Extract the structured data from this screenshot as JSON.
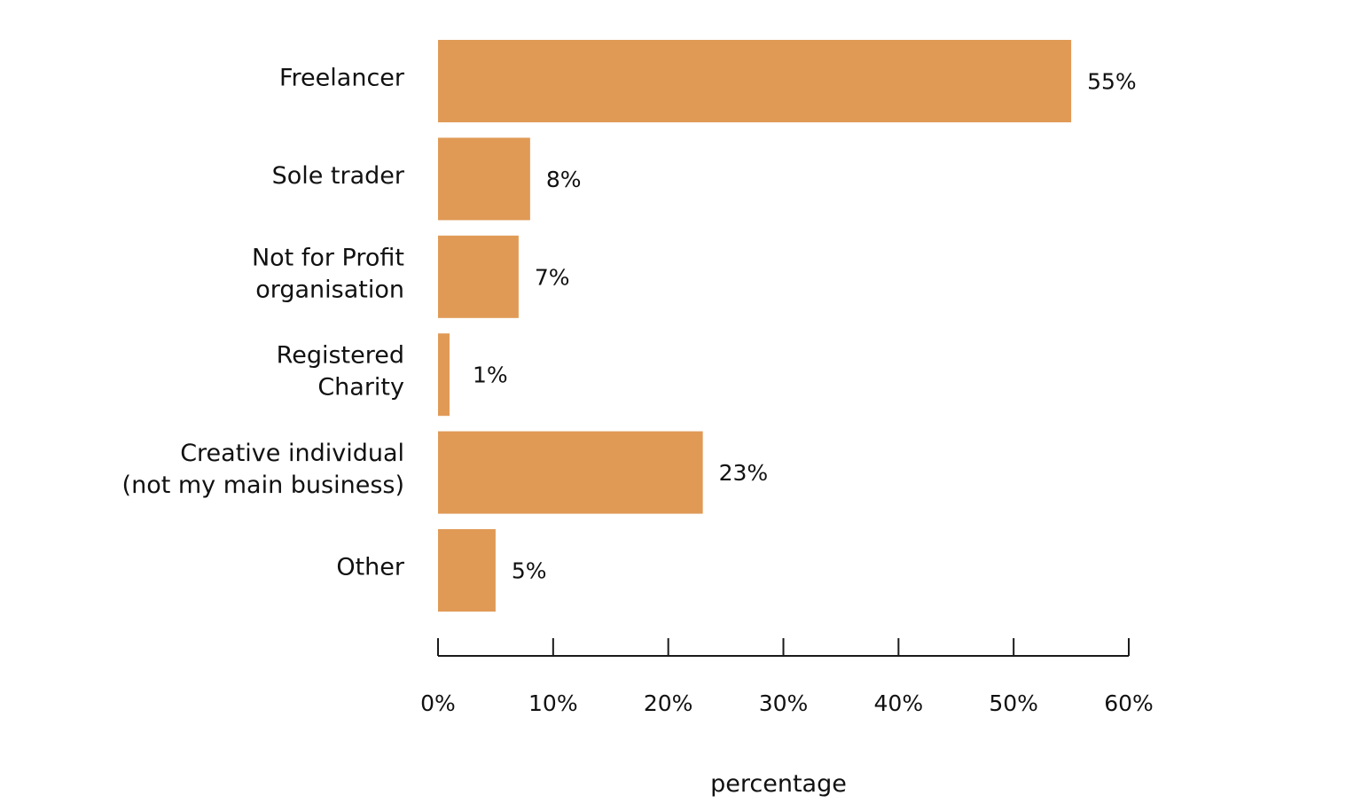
{
  "chart_data": {
    "type": "bar",
    "orientation": "horizontal",
    "categories": [
      "Freelancer",
      "Sole trader",
      "Not for Profit organisation",
      "Registered Charity",
      "Creative individual (not my main business)",
      "Other"
    ],
    "category_lines": [
      [
        "Freelancer"
      ],
      [
        "Sole trader"
      ],
      [
        "Not for Profit",
        "organisation"
      ],
      [
        "Registered",
        "Charity"
      ],
      [
        "Creative individual",
        "(not my main business)"
      ],
      [
        "Other"
      ]
    ],
    "values": [
      55,
      8,
      7,
      1,
      23,
      5
    ],
    "data_labels": [
      "55%",
      "8%",
      "7%",
      "1%",
      "23%",
      "5%"
    ],
    "xlim": [
      0,
      60
    ],
    "xticks": [
      0,
      10,
      20,
      30,
      40,
      50,
      60
    ],
    "xtick_labels": [
      "0%",
      "10%",
      "20%",
      "30%",
      "40%",
      "50%",
      "60%"
    ],
    "xlabel": "percentage",
    "ylabel": "",
    "title": "",
    "grid": false,
    "legend": "none",
    "bar_color": "#E09A56"
  }
}
